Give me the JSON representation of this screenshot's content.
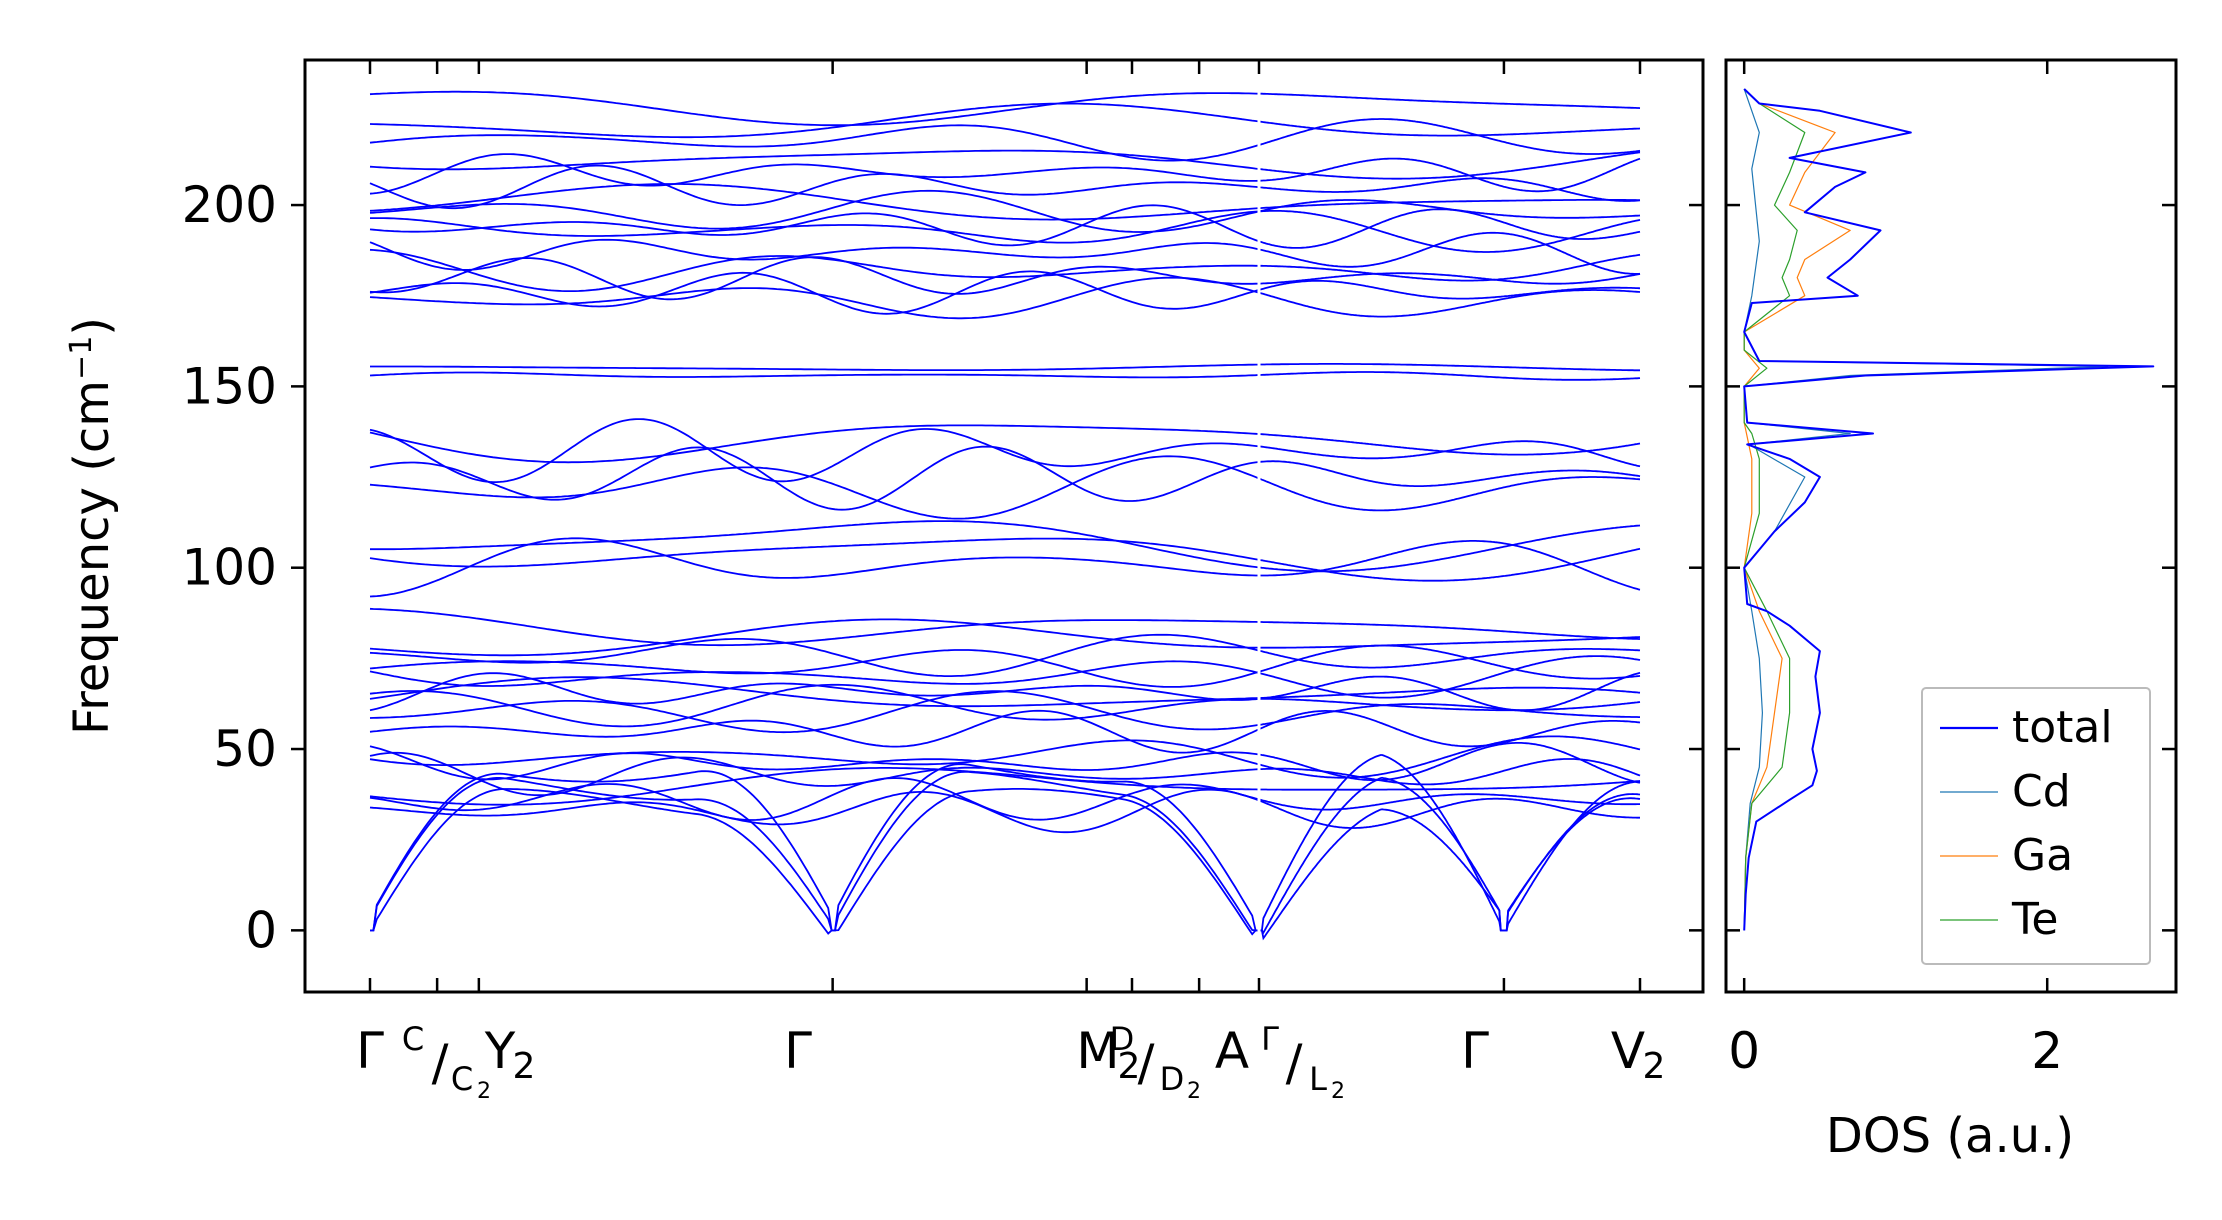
{
  "chart_data": [
    {
      "type": "line",
      "title": "",
      "xlabel": "",
      "ylabel": "Frequency (cm$^{-1}$)",
      "ylabel_parts": {
        "main": "Frequency (cm",
        "sup": "−1",
        "close": ")"
      },
      "ylim": [
        -17,
        240
      ],
      "yticks": [
        0,
        50,
        100,
        150,
        200
      ],
      "ytick_labels": [
        "0",
        "50",
        "100",
        "150",
        "200"
      ],
      "grid": false,
      "line_color": "#0000ff",
      "x_ticks": [
        {
          "x": 0.0,
          "label": "Γ"
        },
        {
          "x": 0.37,
          "label": "C|C₂"
        },
        {
          "x": 0.6,
          "label": "Y₂"
        },
        {
          "x": 2.55,
          "label": "Γ"
        },
        {
          "x": 3.95,
          "label": "M₂"
        },
        {
          "x": 4.2,
          "label": "D|D₂"
        },
        {
          "x": 4.57,
          "label": "A"
        },
        {
          "x": 4.9,
          "label": "Γ|L₂"
        },
        {
          "x": 6.25,
          "label": "Γ"
        },
        {
          "x": 7.0,
          "label": "V₂"
        }
      ],
      "tick_texts": {
        "gamma1": "Γ",
        "c_sup": "C",
        "c_slash": "/",
        "c_sub": "C",
        "c_sub2": "2",
        "y2": "Y",
        "y2_sub": "2",
        "gamma2": "Γ",
        "m2_m": "M",
        "m2_sub": "2",
        "d_sup": "D",
        "d_slash": "/",
        "d_sub": "D",
        "d_sub2": "2",
        "a": "A",
        "gl_sup": "Γ",
        "gl_slash": "/",
        "gl_sub": "L",
        "gl_sub2": "2",
        "gamma3": "Γ",
        "v2": "V",
        "v2_sub": "2"
      },
      "segments": [
        {
          "x_start": 0.0,
          "x_end": 4.9
        },
        {
          "x_start": 4.9,
          "x_end": 7.0
        }
      ],
      "bands_approx": {
        "acoustic_max": 40,
        "band_groups_cm1": [
          [
            33,
            88
          ],
          [
            101,
            138
          ],
          [
            152,
            156
          ],
          [
            174,
            228
          ]
        ],
        "gamma_values_cm1": [
          0,
          0,
          0,
          33,
          36,
          40,
          43,
          46,
          48,
          55,
          60,
          62,
          64,
          66,
          70,
          73,
          76,
          80,
          84,
          101,
          105,
          108,
          122,
          125,
          132,
          137,
          153,
          155,
          174,
          176,
          180,
          182,
          187,
          193,
          194,
          198,
          200,
          205,
          209,
          213,
          218,
          222,
          228
        ]
      }
    },
    {
      "type": "line",
      "title": "",
      "xlabel": "DOS (a.u.)",
      "ylabel": "",
      "xlim": [
        -0.12,
        2.85
      ],
      "xticks": [
        0,
        2
      ],
      "xtick_labels": [
        "0",
        "2"
      ],
      "ylim": [
        -17,
        240
      ],
      "grid": false,
      "legend_position": "lower-right",
      "series": [
        {
          "name": "total",
          "color": "#0000ff",
          "points": [
            [
              0,
              0
            ],
            [
              0.01,
              10
            ],
            [
              0.03,
              20
            ],
            [
              0.08,
              30
            ],
            [
              0.3,
              36
            ],
            [
              0.45,
              40
            ],
            [
              0.48,
              44
            ],
            [
              0.45,
              50
            ],
            [
              0.5,
              60
            ],
            [
              0.47,
              70
            ],
            [
              0.5,
              77
            ],
            [
              0.3,
              84
            ],
            [
              0.15,
              88
            ],
            [
              0.02,
              90
            ],
            [
              0,
              100
            ],
            [
              0.1,
              105
            ],
            [
              0.2,
              110
            ],
            [
              0.4,
              118
            ],
            [
              0.5,
              125
            ],
            [
              0.3,
              130
            ],
            [
              0.02,
              134
            ],
            [
              0.85,
              137
            ],
            [
              0.02,
              140
            ],
            [
              0,
              150
            ],
            [
              0.8,
              153
            ],
            [
              2.7,
              155.5
            ],
            [
              0.1,
              157
            ],
            [
              0,
              165
            ],
            [
              0.05,
              173
            ],
            [
              0.75,
              175
            ],
            [
              0.55,
              180
            ],
            [
              0.7,
              185
            ],
            [
              0.9,
              193
            ],
            [
              0.4,
              198
            ],
            [
              0.6,
              205
            ],
            [
              0.8,
              209
            ],
            [
              0.3,
              213
            ],
            [
              1.1,
              220
            ],
            [
              0.5,
              226
            ],
            [
              0.1,
              228
            ],
            [
              0,
              232
            ]
          ]
        },
        {
          "name": "Cd",
          "color": "#1f77b4",
          "points": [
            [
              0,
              0
            ],
            [
              0.01,
              20
            ],
            [
              0.04,
              35
            ],
            [
              0.1,
              45
            ],
            [
              0.12,
              60
            ],
            [
              0.1,
              75
            ],
            [
              0.05,
              88
            ],
            [
              0,
              100
            ],
            [
              0.2,
              110
            ],
            [
              0.4,
              125
            ],
            [
              0.03,
              134
            ],
            [
              0.7,
              137
            ],
            [
              0.02,
              140
            ],
            [
              0,
              150
            ],
            [
              0.7,
              153
            ],
            [
              2.4,
              155.5
            ],
            [
              0.1,
              157
            ],
            [
              0,
              165
            ],
            [
              0.05,
              175
            ],
            [
              0.1,
              190
            ],
            [
              0.05,
              210
            ],
            [
              0.1,
              220
            ],
            [
              0,
              232
            ]
          ]
        },
        {
          "name": "Ga",
          "color": "#ff7f0e",
          "points": [
            [
              0,
              0
            ],
            [
              0.01,
              20
            ],
            [
              0.05,
              35
            ],
            [
              0.15,
              45
            ],
            [
              0.2,
              60
            ],
            [
              0.25,
              75
            ],
            [
              0.1,
              88
            ],
            [
              0,
              100
            ],
            [
              0.05,
              115
            ],
            [
              0.05,
              130
            ],
            [
              0,
              140
            ],
            [
              0,
              150
            ],
            [
              0.1,
              155
            ],
            [
              0,
              160
            ],
            [
              0,
              165
            ],
            [
              0.4,
              175
            ],
            [
              0.35,
              180
            ],
            [
              0.4,
              185
            ],
            [
              0.7,
              193
            ],
            [
              0.3,
              200
            ],
            [
              0.4,
              209
            ],
            [
              0.6,
              220
            ],
            [
              0.1,
              228
            ],
            [
              0,
              232
            ]
          ]
        },
        {
          "name": "Te",
          "color": "#2ca02c",
          "points": [
            [
              0,
              0
            ],
            [
              0.01,
              20
            ],
            [
              0.05,
              35
            ],
            [
              0.25,
              45
            ],
            [
              0.3,
              60
            ],
            [
              0.3,
              75
            ],
            [
              0.15,
              88
            ],
            [
              0,
              100
            ],
            [
              0.1,
              115
            ],
            [
              0.1,
              130
            ],
            [
              0.05,
              137
            ],
            [
              0,
              140
            ],
            [
              0,
              150
            ],
            [
              0.15,
              155
            ],
            [
              0,
              160
            ],
            [
              0,
              165
            ],
            [
              0.3,
              175
            ],
            [
              0.25,
              180
            ],
            [
              0.3,
              185
            ],
            [
              0.35,
              193
            ],
            [
              0.2,
              200
            ],
            [
              0.3,
              209
            ],
            [
              0.4,
              220
            ],
            [
              0.1,
              228
            ],
            [
              0,
              232
            ]
          ]
        }
      ]
    }
  ]
}
